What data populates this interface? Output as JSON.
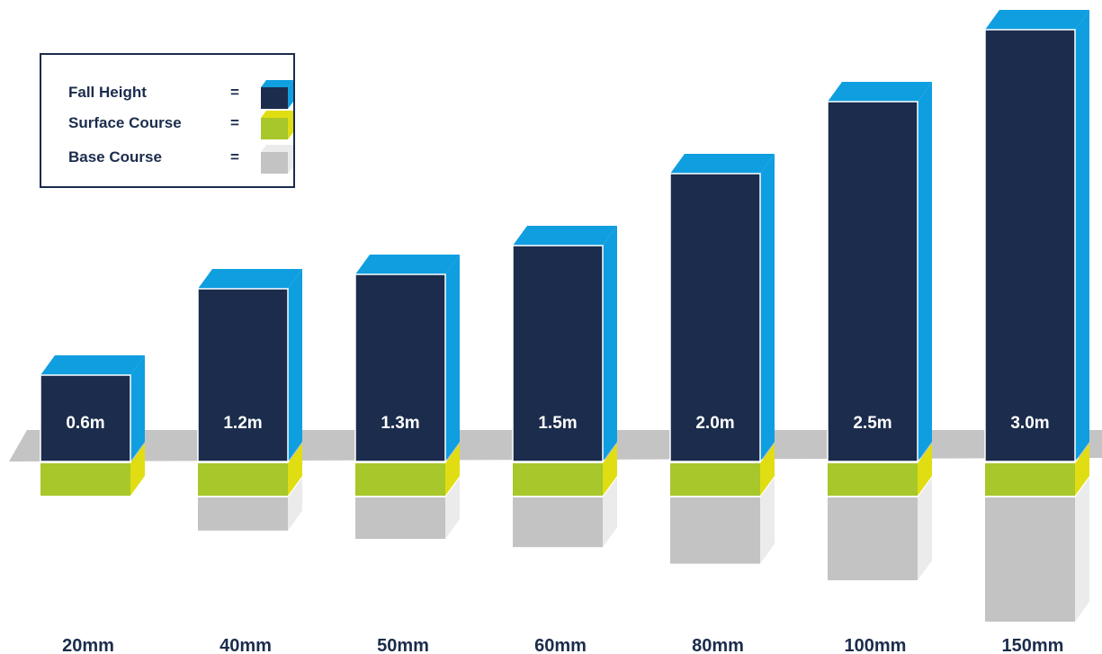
{
  "chart_data": {
    "type": "bar",
    "categories": [
      "20mm",
      "40mm",
      "50mm",
      "60mm",
      "80mm",
      "100mm",
      "150mm"
    ],
    "series": [
      {
        "name": "Fall Height",
        "values": [
          0.6,
          1.2,
          1.3,
          1.5,
          2.0,
          2.5,
          3.0
        ],
        "labels": [
          "0.6m",
          "1.2m",
          "1.3m",
          "1.5m",
          "2.0m",
          "2.5m",
          "3.0m"
        ]
      }
    ],
    "base_course_relative_depth": [
      0,
      40,
      50,
      60,
      80,
      100,
      150
    ]
  },
  "legend": {
    "items": [
      {
        "label": "Fall Height",
        "equals": "=",
        "key": "fall_height"
      },
      {
        "label": "Surface Course",
        "equals": "=",
        "key": "surface_course"
      },
      {
        "label": "Base Course",
        "equals": "=",
        "key": "base_course"
      }
    ]
  },
  "colors": {
    "fall_height_front": "#1b2c4c",
    "fall_height_top": "#0f9ee0",
    "surface_front": "#a7c72a",
    "surface_side": "#e0dd13",
    "base_front": "#c3c3c3",
    "base_side": "#ebebeb",
    "ground": "#c4c4c4"
  }
}
